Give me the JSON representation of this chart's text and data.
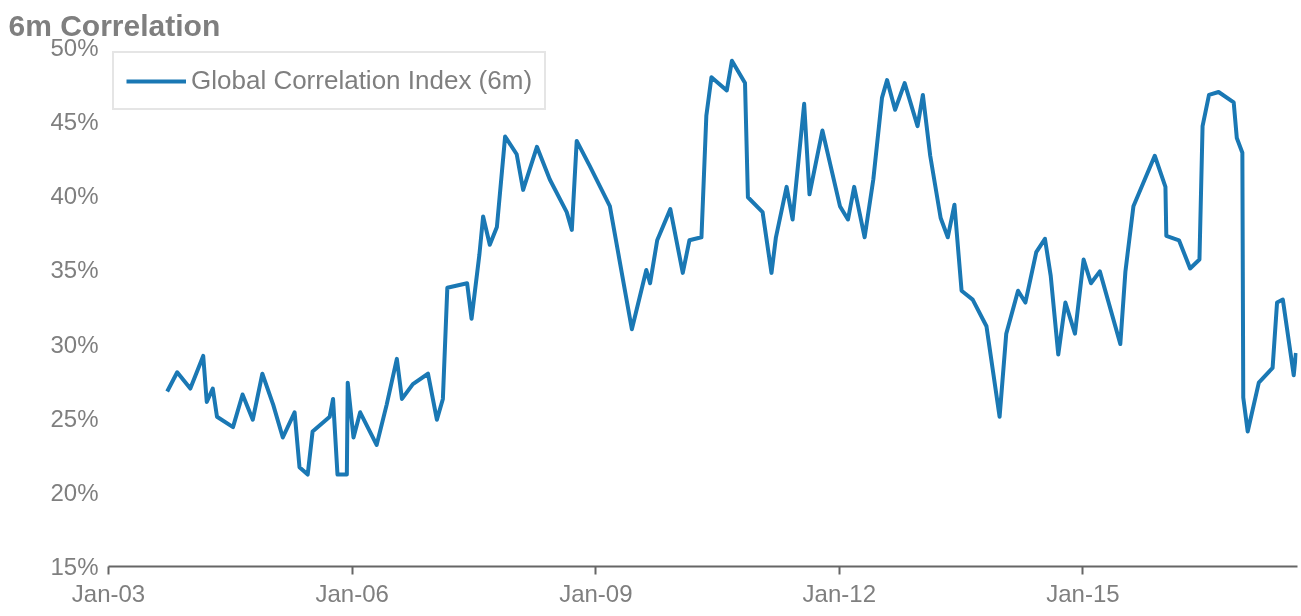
{
  "chart_data": {
    "type": "line",
    "title": "6m Correlation",
    "x": [
      "2003-09-22",
      "2003-11-06",
      "2004-01-04",
      "2004-03-02",
      "2004-03-18",
      "2004-04-14",
      "2004-05-03",
      "2004-07-14",
      "2004-08-26",
      "2004-10-11",
      "2004-11-23",
      "2005-01-11",
      "2005-02-23",
      "2005-04-17",
      "2005-05-09",
      "2005-06-15",
      "2005-07-07",
      "2005-09-22",
      "2005-10-07",
      "2005-10-27",
      "2005-12-08",
      "2005-12-12",
      "2006-01-07",
      "2006-02-06",
      "2006-04-21",
      "2006-06-05",
      "2006-07-21",
      "2006-08-13",
      "2006-10-01",
      "2006-12-08",
      "2007-01-17",
      "2007-02-13",
      "2007-03-05",
      "2007-06-02",
      "2007-06-22",
      "2007-07-27",
      "2007-08-13",
      "2007-09-12",
      "2007-10-14",
      "2007-11-20",
      "2008-01-11",
      "2008-02-09",
      "2008-04-11",
      "2008-06-08",
      "2008-08-23",
      "2008-09-15",
      "2008-10-07",
      "2008-12-05",
      "2009-03-05",
      "2009-04-17",
      "2009-06-12",
      "2009-08-16",
      "2009-09-02",
      "2009-10-04",
      "2009-12-02",
      "2010-01-27",
      "2010-02-26",
      "2010-04-21",
      "2010-05-13",
      "2010-06-05",
      "2010-08-13",
      "2010-09-05",
      "2010-11-03",
      "2010-11-16",
      "2011-01-21",
      "2011-03-02",
      "2011-03-22",
      "2011-05-09",
      "2011-06-05",
      "2011-07-27",
      "2011-08-20",
      "2011-10-17",
      "2012-01-04",
      "2012-02-09",
      "2012-03-08",
      "2012-04-24",
      "2012-06-02",
      "2012-07-11",
      "2012-08-03",
      "2012-09-08",
      "2012-10-21",
      "2012-12-18",
      "2013-01-11",
      "2013-02-13",
      "2013-04-01",
      "2013-05-03",
      "2013-06-02",
      "2013-07-04",
      "2013-08-23",
      "2013-10-24",
      "2013-12-22",
      "2014-01-21",
      "2014-03-15",
      "2014-04-17",
      "2014-06-05",
      "2014-07-14",
      "2014-08-09",
      "2014-09-12",
      "2014-10-14",
      "2014-11-26",
      "2015-01-04",
      "2015-02-06",
      "2015-03-18",
      "2015-06-18",
      "2015-07-11",
      "2015-08-16",
      "2015-11-20",
      "2016-01-07",
      "2016-01-11",
      "2016-03-08",
      "2016-04-27",
      "2016-06-08",
      "2016-06-22",
      "2016-07-21",
      "2016-09-02",
      "2016-11-09",
      "2016-11-23",
      "2016-12-18",
      "2016-12-22",
      "2017-01-11",
      "2017-03-02",
      "2017-05-03",
      "2017-05-23",
      "2017-06-18",
      "2017-08-06",
      "2017-08-16"
    ],
    "series": [
      {
        "name": "Global Correlation Index (6m)",
        "color": "#1a78b4",
        "values": [
          26.8,
          28.1,
          27.0,
          29.2,
          26.1,
          27.0,
          25.1,
          24.4,
          26.6,
          24.9,
          28.0,
          25.9,
          23.7,
          25.4,
          21.7,
          21.2,
          24.1,
          25.1,
          26.3,
          21.2,
          21.2,
          27.4,
          23.7,
          25.4,
          23.2,
          25.9,
          29.0,
          26.3,
          27.3,
          28.0,
          24.9,
          26.3,
          33.8,
          34.1,
          31.7,
          36.0,
          38.6,
          36.7,
          37.9,
          44.0,
          42.8,
          40.4,
          43.3,
          41.1,
          38.9,
          37.7,
          43.7,
          42.0,
          39.3,
          35.7,
          31.0,
          35.0,
          34.1,
          37.0,
          39.1,
          34.8,
          37.0,
          37.2,
          45.4,
          48.0,
          47.1,
          49.1,
          47.6,
          39.9,
          38.9,
          34.8,
          37.2,
          40.6,
          38.4,
          46.2,
          40.1,
          44.4,
          39.3,
          38.4,
          40.6,
          37.2,
          41.1,
          46.6,
          47.8,
          45.8,
          47.6,
          44.7,
          46.8,
          42.7,
          38.5,
          37.2,
          39.4,
          33.6,
          33.0,
          31.2,
          25.1,
          30.7,
          33.6,
          32.8,
          36.2,
          37.1,
          34.6,
          29.3,
          32.8,
          30.7,
          35.7,
          34.1,
          34.9,
          30.0,
          34.9,
          39.3,
          42.7,
          40.6,
          37.3,
          37.0,
          35.1,
          35.7,
          44.7,
          46.8,
          47.0,
          46.3,
          43.9,
          42.9,
          26.4,
          24.1,
          27.4,
          28.4,
          32.8,
          33.0,
          27.9,
          29.4
        ]
      }
    ],
    "xlim": [
      "2003-01-01",
      "2017-08-23"
    ],
    "xticks": [
      {
        "value": "2003-01-01",
        "label": "Jan-03"
      },
      {
        "value": "2006-01-01",
        "label": "Jan-06"
      },
      {
        "value": "2009-01-01",
        "label": "Jan-09"
      },
      {
        "value": "2012-01-01",
        "label": "Jan-12"
      },
      {
        "value": "2015-01-01",
        "label": "Jan-15"
      }
    ],
    "ylim": [
      15,
      50
    ],
    "yticks": [
      {
        "value": 15,
        "label": "15%"
      },
      {
        "value": 20,
        "label": "20%"
      },
      {
        "value": 25,
        "label": "25%"
      },
      {
        "value": 30,
        "label": "30%"
      },
      {
        "value": 35,
        "label": "35%"
      },
      {
        "value": 40,
        "label": "40%"
      },
      {
        "value": 45,
        "label": "45%"
      },
      {
        "value": 50,
        "label": "50%"
      }
    ],
    "legend": "top left",
    "grid": false
  }
}
